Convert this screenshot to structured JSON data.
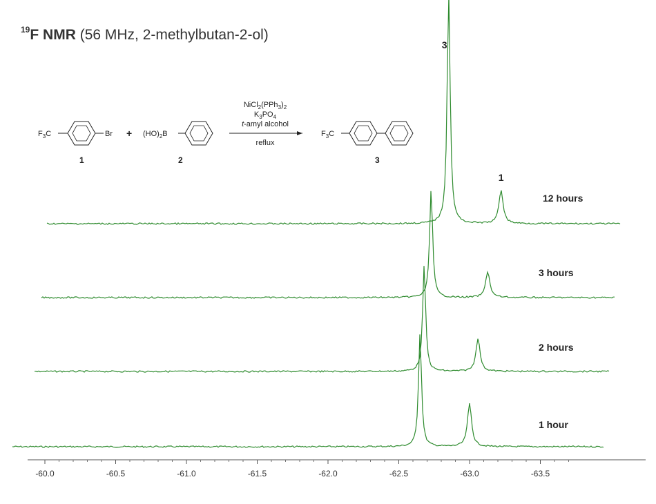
{
  "title": {
    "nucleus_mass": "19",
    "nucleus_symbol": "F",
    "technique": "NMR",
    "conditions": "(56 MHz,  2-methylbutan-2-ol)"
  },
  "scheme": {
    "reactant1": {
      "left_group": "F3C",
      "right_group": "Br",
      "number": "1"
    },
    "plus": "+",
    "reactant2": {
      "left_group": "(HO)2B",
      "number": "2"
    },
    "product": {
      "left_group": "F3C",
      "number": "3"
    },
    "reagents": [
      "NiCl2(PPh3)2",
      "K3PO4",
      "t-amyl alcohol"
    ],
    "below_arrow": "reflux"
  },
  "chart_data": {
    "type": "line",
    "title": "19F NMR (56 MHz,  2-methylbutan-2-ol)",
    "xlabel": "",
    "ylabel": "",
    "x_ticks": [
      -60.0,
      -60.5,
      -61.0,
      -61.5,
      -62.0,
      -62.5,
      -63.0,
      -63.5
    ],
    "x_tick_labels": [
      "-60.0",
      "-60.5",
      "-61.0",
      "-61.5",
      "-62.0",
      "-62.5",
      "-63.0",
      "-63.5"
    ],
    "axis_reversed": true,
    "peak_labels": [
      {
        "label": "3",
        "ppm": -62.72
      },
      {
        "label": "1",
        "ppm": -63.12
      }
    ],
    "series": [
      {
        "name": "1 hour",
        "peaks": [
          {
            "ppm": -62.65,
            "height": 0.53
          },
          {
            "ppm": -63.0,
            "height": 0.2
          }
        ]
      },
      {
        "name": "2 hours",
        "peaks": [
          {
            "ppm": -62.65,
            "height": 0.54
          },
          {
            "ppm": -63.03,
            "height": 0.17
          }
        ]
      },
      {
        "name": "3 hours",
        "peaks": [
          {
            "ppm": -62.67,
            "height": 0.54
          },
          {
            "ppm": -63.07,
            "height": 0.13
          }
        ]
      },
      {
        "name": "12 hours",
        "peaks": [
          {
            "ppm": -62.75,
            "height": 0.69
          },
          {
            "ppm": -63.12,
            "height": 0.1
          }
        ]
      }
    ]
  },
  "colors": {
    "trace": "#2e8b2e",
    "axis": "#555555",
    "text": "#222222"
  }
}
